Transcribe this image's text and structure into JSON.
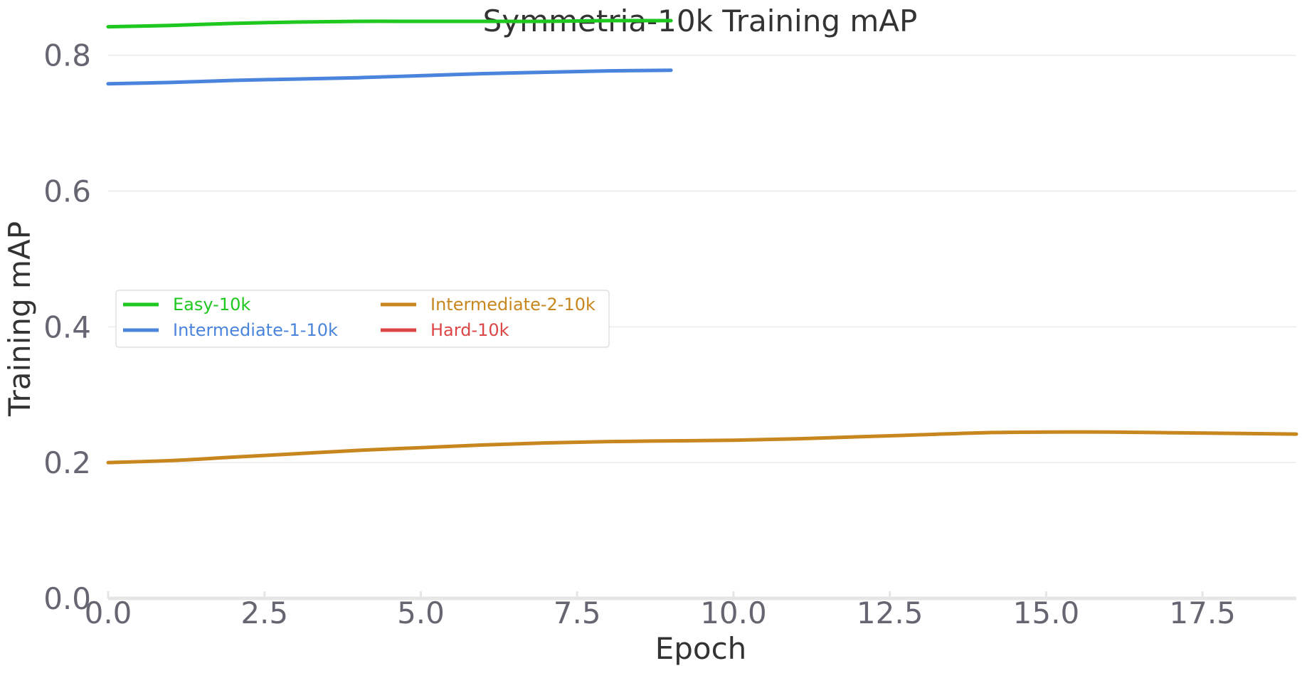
{
  "chart_data": {
    "type": "line",
    "title": "Symmetria-10k Training mAP",
    "xlabel": "Epoch",
    "ylabel": "Training mAP",
    "xlim": [
      0,
      19
    ],
    "ylim": [
      0,
      0.85
    ],
    "xticks": [
      "0.0",
      "2.5",
      "5.0",
      "7.5",
      "10.0",
      "12.5",
      "15.0",
      "17.5"
    ],
    "yticks": [
      "0.0",
      "0.2",
      "0.4",
      "0.6",
      "0.8"
    ],
    "grid": "horizontal",
    "legend_position": "center-left",
    "series": [
      {
        "name": "Easy-10k",
        "color": "#1ec81e",
        "x": [
          0,
          1,
          2,
          3,
          4,
          5,
          6,
          7,
          8,
          9
        ],
        "y": [
          0.842,
          0.844,
          0.847,
          0.849,
          0.85,
          0.85,
          0.85,
          0.85,
          0.851,
          0.851
        ]
      },
      {
        "name": "Intermediate-1-10k",
        "color": "#4a84dc",
        "x": [
          0,
          1,
          2,
          3,
          4,
          5,
          6,
          7,
          8,
          9
        ],
        "y": [
          0.758,
          0.76,
          0.763,
          0.765,
          0.767,
          0.77,
          0.773,
          0.775,
          0.777,
          0.778
        ]
      },
      {
        "name": "Intermediate-2-10k",
        "color": "#c8871e",
        "x": [
          0,
          1,
          2,
          3,
          4,
          5,
          6,
          7,
          8,
          9,
          10,
          11,
          12,
          13,
          14,
          15,
          16,
          17,
          18,
          19
        ],
        "y": [
          0.2,
          0.203,
          0.208,
          0.213,
          0.218,
          0.222,
          0.226,
          0.229,
          0.231,
          0.232,
          0.233,
          0.235,
          0.238,
          0.241,
          0.244,
          0.245,
          0.245,
          0.244,
          0.243,
          0.242
        ]
      },
      {
        "name": "Hard-10k",
        "color": "#dc4646",
        "x": [],
        "y": []
      }
    ]
  }
}
